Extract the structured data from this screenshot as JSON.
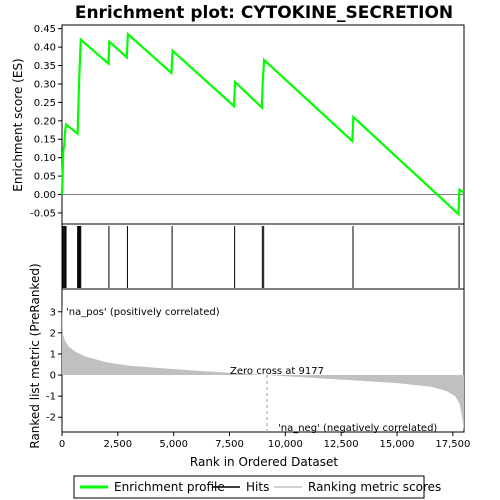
{
  "chart_data": {
    "type": "line",
    "title": "Enrichment plot: CYTOKINE_SECRETION",
    "xlabel": "Rank in Ordered Dataset",
    "xlim": [
      0,
      18000
    ],
    "x_ticks": [
      0,
      2500,
      5000,
      7500,
      10000,
      12500,
      15000,
      17500
    ],
    "x_tick_labels": [
      "0",
      "2,500",
      "5,000",
      "7,500",
      "10,000",
      "12,500",
      "15,000",
      "17,500"
    ],
    "es_panel": {
      "ylabel": "Enrichment score (ES)",
      "ylim": [
        -0.08,
        0.46
      ],
      "y_ticks": [
        -0.05,
        0.0,
        0.05,
        0.1,
        0.15,
        0.2,
        0.25,
        0.3,
        0.35,
        0.4,
        0.45
      ],
      "y_tick_labels": [
        "-0.05",
        "0.00",
        "0.05",
        "0.10",
        "0.15",
        "0.20",
        "0.25",
        "0.30",
        "0.35",
        "0.40",
        "0.45"
      ],
      "series": [
        {
          "name": "Enrichment profile",
          "color": "#00ff00",
          "x": [
            0,
            30,
            60,
            100,
            140,
            180,
            700,
            730,
            760,
            800,
            840,
            2080,
            2120,
            2900,
            2950,
            4900,
            4950,
            7700,
            7750,
            8950,
            8980,
            9050,
            13000,
            13050,
            17750,
            17800,
            18000
          ],
          "y": [
            0.0,
            0.06,
            0.12,
            0.13,
            0.17,
            0.19,
            0.165,
            0.23,
            0.3,
            0.36,
            0.42,
            0.355,
            0.415,
            0.372,
            0.435,
            0.33,
            0.39,
            0.24,
            0.305,
            0.236,
            0.3,
            0.365,
            0.145,
            0.21,
            -0.053,
            0.013,
            0.005
          ]
        }
      ]
    },
    "hits": {
      "name": "Hits",
      "positions": [
        30,
        60,
        100,
        140,
        180,
        700,
        730,
        760,
        800,
        840,
        2100,
        2930,
        4930,
        7730,
        8970,
        9030,
        13030,
        17780
      ]
    },
    "ranked_panel": {
      "ylabel": "Ranked list metric (PreRanked)",
      "ylim": [
        -2.7,
        3.7
      ],
      "y_ticks": [
        -2,
        -1,
        0,
        1,
        2,
        3
      ],
      "y_tick_labels": [
        "-2",
        "-1",
        "0",
        "1",
        "2",
        "3"
      ],
      "series_name": "Ranking metric scores",
      "x": [
        0,
        50,
        150,
        300,
        600,
        1000,
        2000,
        3000,
        5000,
        7000,
        9177,
        11000,
        13000,
        15000,
        16500,
        17200,
        17600,
        17800,
        17900,
        18000
      ],
      "y": [
        3.3,
        1.9,
        1.6,
        1.35,
        1.1,
        0.9,
        0.6,
        0.45,
        0.28,
        0.14,
        0.0,
        -0.12,
        -0.25,
        -0.38,
        -0.55,
        -0.75,
        -1.0,
        -1.35,
        -1.9,
        -2.6
      ],
      "zero_cross_label": "Zero cross at 9177",
      "zero_cross_x": 9177,
      "pos_label": "'na_pos' (positively correlated)",
      "neg_label": "'na_neg' (negatively correlated)",
      "pos_color": "#cc0000",
      "neg_color": "#0000cc"
    },
    "colorbar": {
      "colors": [
        "#ee0000",
        "#ff5050",
        "#ff7878",
        "#ffa0a0",
        "#ffc8f0",
        "#f0d8ff",
        "#d8d8ff",
        "#b8b8ff",
        "#8080ff",
        "#5050ee",
        "#2020cc"
      ],
      "boundaries": [
        0,
        700,
        3400,
        4900,
        6700,
        7900,
        9177,
        11700,
        13100,
        14500,
        17200,
        18000
      ]
    },
    "legend": [
      {
        "label": "Enrichment profile",
        "color": "#00ff00"
      },
      {
        "label": "Hits",
        "color": "#000000"
      },
      {
        "label": "Ranking metric scores",
        "color": "#c0c0c0"
      }
    ]
  }
}
